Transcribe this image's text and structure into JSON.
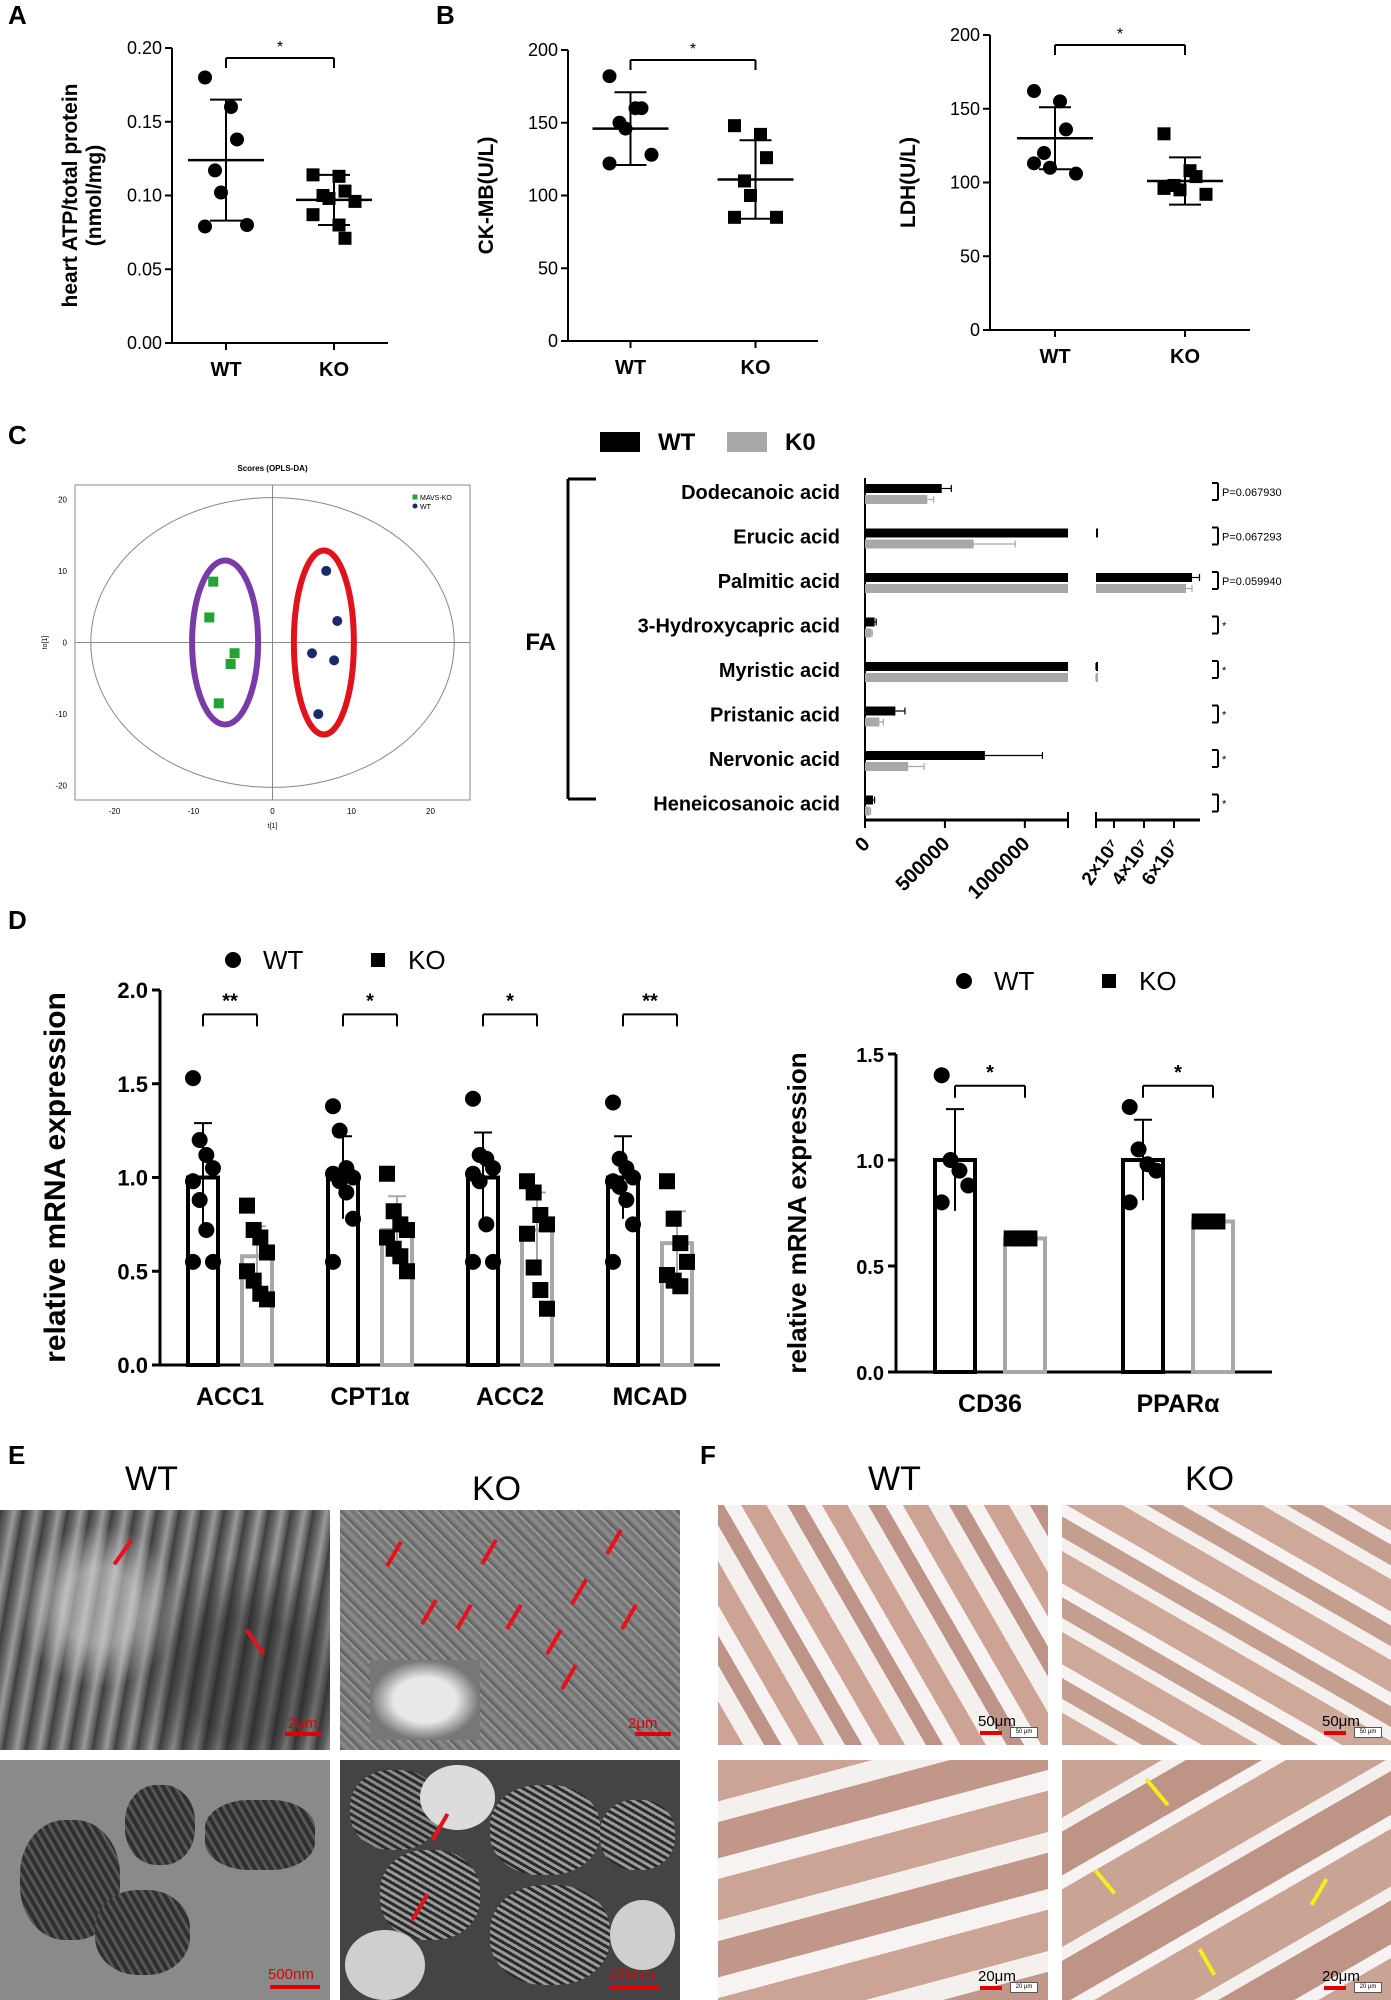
{
  "panel_letters": {
    "a": "A",
    "b": "B",
    "c": "C",
    "d": "D",
    "e": "E",
    "f": "F"
  },
  "colors": {
    "wt_bar": "#000000",
    "ko_bar": "#a8a8a8",
    "arrow_red": "#e8101a",
    "arrow_yellow": "#f7ec1c",
    "wt_group": "#e0121b",
    "ko_group": "#7a3aa8",
    "ko_marker": "#21a336",
    "wt_marker": "#1b2a6b"
  },
  "chart_data": [
    {
      "id": "A",
      "type": "scatter",
      "ylabel": "heart ATP/total protein (nmol/mg)",
      "ylabel_lines": [
        "heart ATP/total protein",
        "(nmol/mg)"
      ],
      "categories": [
        "WT",
        "KO"
      ],
      "ylim": [
        0,
        0.2
      ],
      "yticks": [
        "0.00",
        "0.05",
        "0.10",
        "0.15",
        "0.20"
      ],
      "series": [
        {
          "name": "WT",
          "marker": "circle",
          "values": [
            0.18,
            0.16,
            0.138,
            0.117,
            0.102,
            0.08,
            0.079
          ],
          "mean": 0.124,
          "sd": 0.041
        },
        {
          "name": "KO",
          "marker": "square",
          "values": [
            0.114,
            0.113,
            0.103,
            0.1,
            0.098,
            0.096,
            0.087,
            0.08,
            0.071
          ],
          "mean": 0.097,
          "sd": 0.017
        }
      ],
      "significance": "*"
    },
    {
      "id": "B1",
      "type": "scatter",
      "ylabel": "CK-MB(U/L)",
      "categories": [
        "WT",
        "KO"
      ],
      "ylim": [
        0,
        200
      ],
      "yticks": [
        "0",
        "50",
        "100",
        "150",
        "200"
      ],
      "series": [
        {
          "name": "WT",
          "marker": "circle",
          "values": [
            182,
            160,
            160,
            150,
            146,
            128,
            122
          ],
          "mean": 146,
          "sd": 25
        },
        {
          "name": "KO",
          "marker": "square",
          "values": [
            148,
            142,
            126,
            110,
            100,
            85,
            85
          ],
          "mean": 111,
          "sd": 27
        }
      ],
      "significance": "*"
    },
    {
      "id": "B2",
      "type": "scatter",
      "ylabel": "LDH(U/L)",
      "categories": [
        "WT",
        "KO"
      ],
      "ylim": [
        0,
        200
      ],
      "yticks": [
        "0",
        "50",
        "100",
        "150",
        "200"
      ],
      "series": [
        {
          "name": "WT",
          "marker": "circle",
          "values": [
            162,
            155,
            136,
            120,
            110,
            106,
            113
          ],
          "mean": 130,
          "sd": 21
        },
        {
          "name": "KO",
          "marker": "square",
          "values": [
            133,
            108,
            104,
            98,
            95,
            92,
            96
          ],
          "mean": 101,
          "sd": 16
        }
      ],
      "significance": "*"
    },
    {
      "id": "C_left",
      "type": "scatter",
      "title": "Scores (OPLS-DA)",
      "xlabel": "t[1]",
      "ylabel": "to[1]",
      "xlim": [
        -25,
        25
      ],
      "ylim": [
        -22,
        22
      ],
      "xticks": [
        "-20",
        "-10",
        "0",
        "10",
        "20"
      ],
      "yticks": [
        "20",
        "10",
        "0",
        "-10",
        "-20"
      ],
      "legend": [
        "MAVS-KO",
        "WT"
      ],
      "series": [
        {
          "name": "MAVS-KO",
          "marker": "square",
          "points": [
            [
              -7.5,
              8.5
            ],
            [
              -8,
              3.5
            ],
            [
              -4.8,
              -1.5
            ],
            [
              -5.3,
              -3
            ],
            [
              -6.8,
              -8.5
            ]
          ]
        },
        {
          "name": "WT",
          "marker": "circle",
          "points": [
            [
              6.8,
              10
            ],
            [
              8.2,
              3
            ],
            [
              5,
              -1.5
            ],
            [
              7.8,
              -2.5
            ],
            [
              5.8,
              -10
            ]
          ]
        }
      ]
    },
    {
      "id": "C_right",
      "type": "bar",
      "legend": [
        "WT",
        "K0"
      ],
      "group_label": "FA",
      "categories": [
        "Dodecanoic acid",
        "Erucic acid",
        "Palmitic acid",
        "3-Hydroxycapric acid",
        "Myristic acid",
        "Pristanic acid",
        "Nervonic acid",
        "Heneicosanoic acid"
      ],
      "series": [
        {
          "name": "WT",
          "values": [
            480000,
            5000000,
            72000000,
            60000,
            7000000,
            190000,
            750000,
            50000
          ],
          "err": [
            60000,
            0,
            5000000,
            10000,
            1000000,
            60000,
            360000,
            10000
          ]
        },
        {
          "name": "K0",
          "values": [
            390000,
            680000,
            68000000,
            40000,
            7000000,
            90000,
            270000,
            30000
          ],
          "err": [
            40000,
            260000,
            4000000,
            5000,
            800000,
            25000,
            100000,
            5000
          ]
        }
      ],
      "pvalues": [
        "P=0.067930",
        "P=0.067293",
        "P=0.059940",
        "*",
        "*",
        "*",
        "*",
        "*"
      ],
      "xticks_left": [
        "0",
        "500000",
        "1000000"
      ],
      "xticks_right": [
        "2×10⁷",
        "4×10⁷",
        "6×10⁷"
      ]
    },
    {
      "id": "D1",
      "type": "bar",
      "ylabel": "relative mRNA expression",
      "legend": [
        "WT",
        "KO"
      ],
      "categories": [
        "ACC1",
        "CPT1α",
        "ACC2",
        "MCAD"
      ],
      "ylim": [
        0,
        2.0
      ],
      "yticks": [
        "0.0",
        "0.5",
        "1.0",
        "1.5",
        "2.0"
      ],
      "series": [
        {
          "name": "WT",
          "values": [
            1.0,
            1.0,
            1.0,
            1.0
          ],
          "sd": [
            0.29,
            0.22,
            0.24,
            0.22
          ],
          "points": [
            [
              1.53,
              1.2,
              1.12,
              1.05,
              0.98,
              0.88,
              0.72,
              0.55,
              0.55
            ],
            [
              1.38,
              1.25,
              1.05,
              1.0,
              1.02,
              0.98,
              0.92,
              0.78,
              0.55
            ],
            [
              1.42,
              1.12,
              1.1,
              1.05,
              1.02,
              0.98,
              0.75,
              0.55,
              0.55
            ],
            [
              1.4,
              1.1,
              1.05,
              1.0,
              0.98,
              0.95,
              0.88,
              0.75,
              0.55
            ]
          ]
        },
        {
          "name": "KO",
          "values": [
            0.58,
            0.72,
            0.72,
            0.65
          ],
          "sd": [
            0.16,
            0.18,
            0.2,
            0.17
          ],
          "points": [
            [
              0.85,
              0.72,
              0.68,
              0.6,
              0.5,
              0.45,
              0.38,
              0.35
            ],
            [
              1.02,
              0.82,
              0.75,
              0.72,
              0.68,
              0.62,
              0.58,
              0.5
            ],
            [
              0.98,
              0.92,
              0.8,
              0.75,
              0.7,
              0.52,
              0.4,
              0.3
            ],
            [
              0.98,
              0.78,
              0.65,
              0.55,
              0.48,
              0.45,
              0.42
            ]
          ]
        }
      ],
      "significance": [
        "**",
        "*",
        "*",
        "**"
      ]
    },
    {
      "id": "D2",
      "type": "bar",
      "ylabel": "relative mRNA expression",
      "legend": [
        "WT",
        "KO"
      ],
      "categories": [
        "CD36",
        "PPARα"
      ],
      "ylim": [
        0,
        1.5
      ],
      "yticks": [
        "0.0",
        "0.5",
        "1.0",
        "1.5"
      ],
      "series": [
        {
          "name": "WT",
          "values": [
            1.0,
            1.0
          ],
          "sd": [
            0.24,
            0.19
          ],
          "points": [
            [
              1.4,
              1.0,
              0.95,
              0.88,
              0.8
            ],
            [
              1.25,
              1.05,
              0.98,
              0.95,
              0.8
            ]
          ]
        },
        {
          "name": "KO",
          "values": [
            0.63,
            0.71
          ],
          "sd": [
            0.01,
            0.01
          ],
          "points": [
            [
              0.63,
              0.63,
              0.63
            ],
            [
              0.71,
              0.71,
              0.71
            ]
          ]
        }
      ],
      "significance": [
        "*",
        "*"
      ]
    }
  ],
  "panel_E": {
    "titles": [
      "WT",
      "KO"
    ],
    "scale_labels": [
      "2μm",
      "2μm",
      "500nm",
      "500nm"
    ]
  },
  "panel_F": {
    "titles": [
      "WT",
      "KO"
    ],
    "scale_labels": [
      "50μm",
      "50μm",
      "20μm",
      "20μm"
    ],
    "scale_box_labels": [
      "50 μm",
      "50 μm",
      "20 μm",
      "20 μm"
    ]
  }
}
